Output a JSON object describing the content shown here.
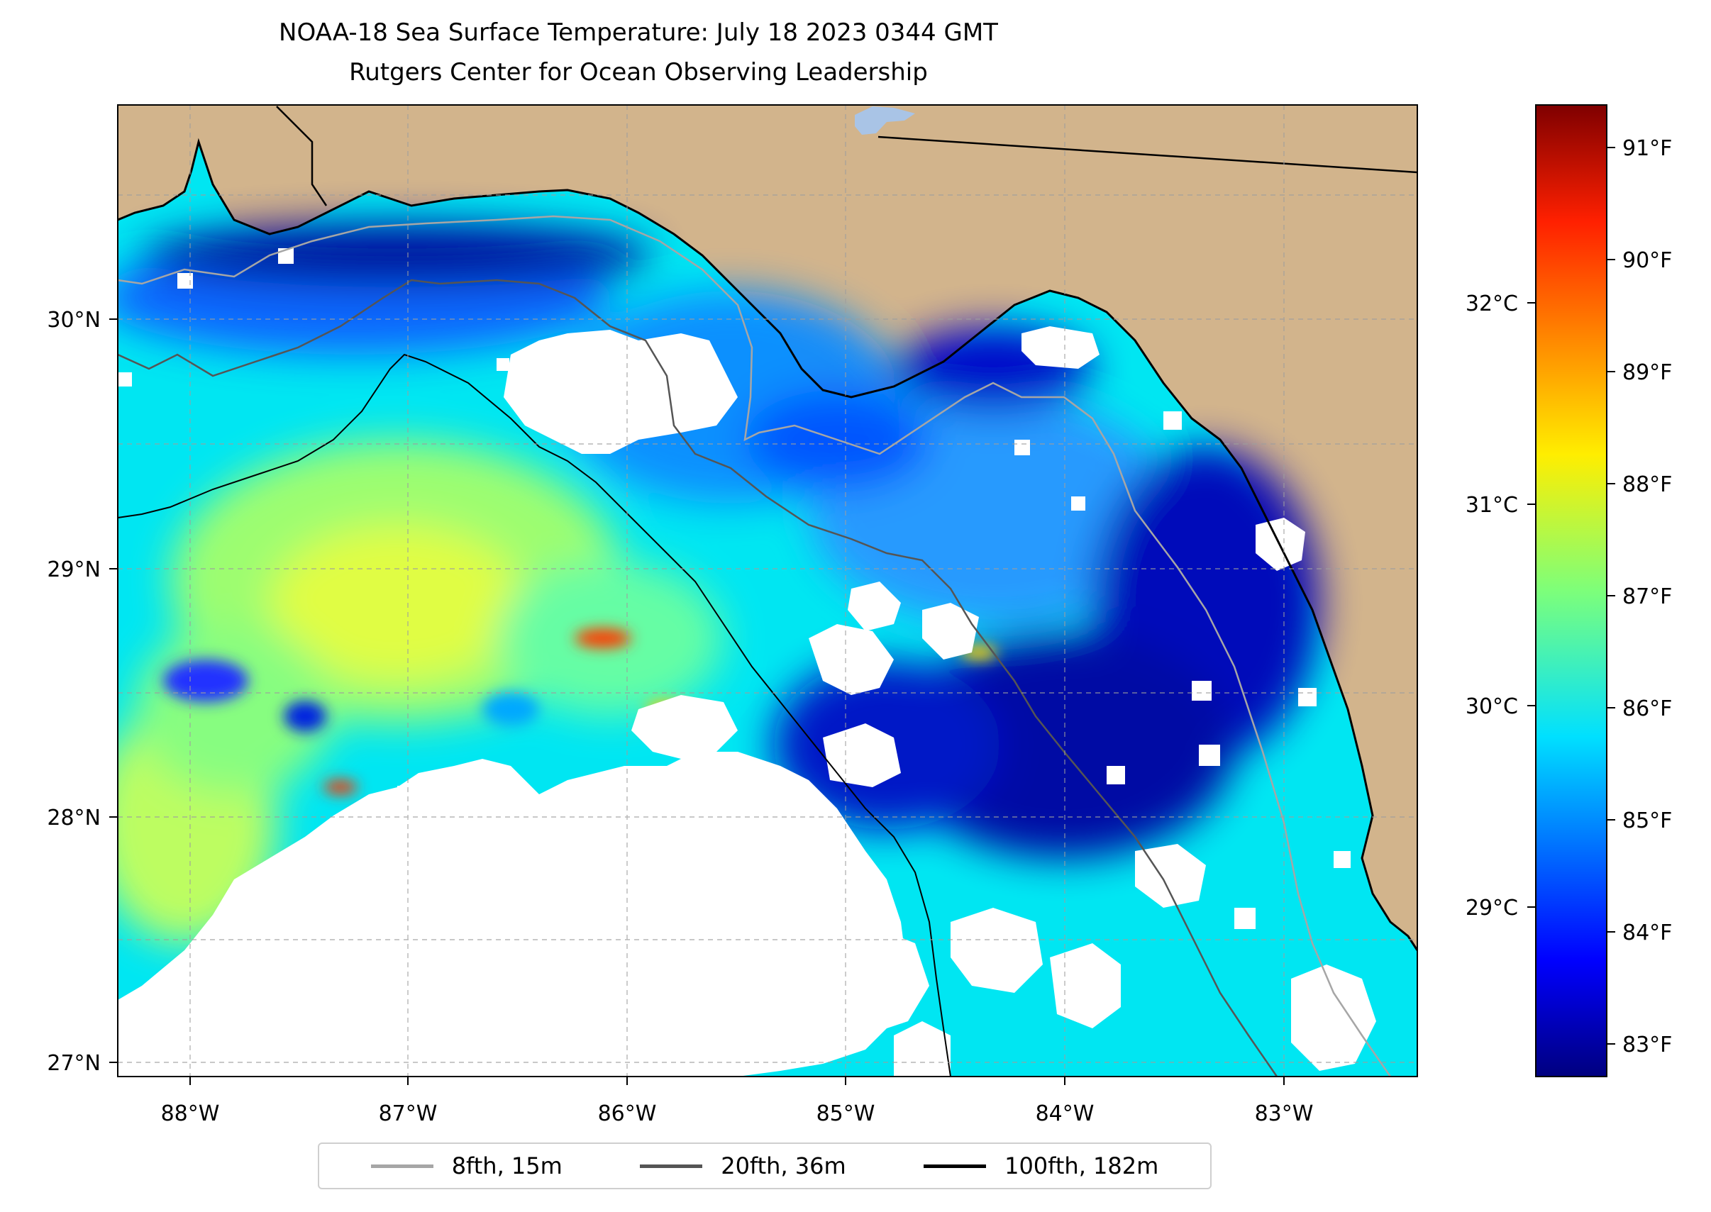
{
  "title": {
    "line1": "NOAA-18 Sea Surface Temperature: July 18 2023 0344 GMT",
    "line2": "Rutgers Center for Ocean Observing Leadership"
  },
  "map": {
    "longitude_ticks": [
      "88°W",
      "87°W",
      "86°W",
      "85°W",
      "84°W",
      "83°W"
    ],
    "latitude_ticks": [
      "30°N",
      "29°N",
      "28°N",
      "27°N"
    ],
    "land_color": "#d2b48c",
    "no_data_color": "#ffffff",
    "coastline_color": "#000000"
  },
  "colorbar": {
    "colormap": "jet",
    "fahrenheit_ticks": [
      "91°F",
      "90°F",
      "89°F",
      "88°F",
      "87°F",
      "86°F",
      "85°F",
      "84°F",
      "83°F"
    ],
    "celsius_ticks": [
      "32°C",
      "31°C",
      "30°C",
      "29°C"
    ]
  },
  "legend": {
    "items": [
      {
        "label": "8fth, 15m",
        "color": "#a6a6a6"
      },
      {
        "label": "20fth, 36m",
        "color": "#555555"
      },
      {
        "label": "100fth, 182m",
        "color": "#000000"
      }
    ]
  }
}
